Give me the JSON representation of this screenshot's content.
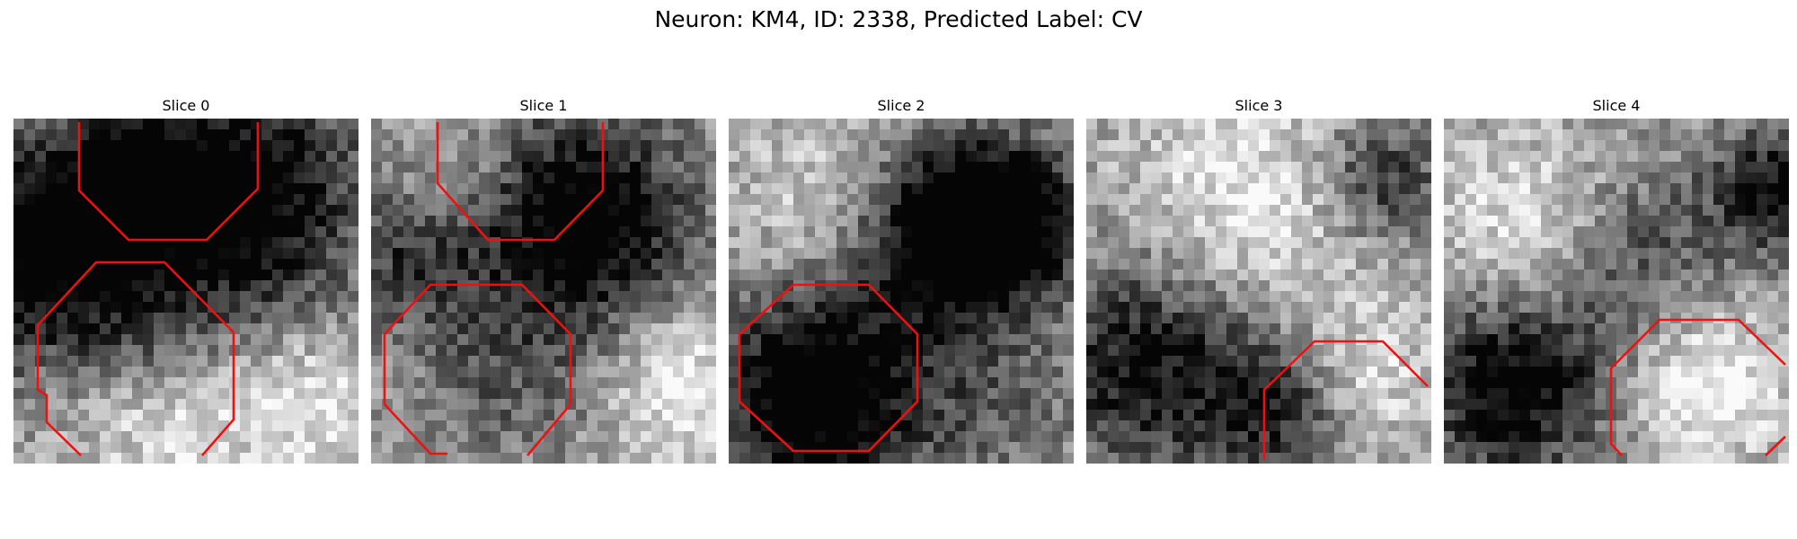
{
  "title": "Neuron: KM4, ID: 2338, Predicted Label: CV",
  "contour_color": "#ee1111",
  "colormap": "gray",
  "panels": [
    {
      "title": "Slice 0"
    },
    {
      "title": "Slice 1"
    },
    {
      "title": "Slice 2"
    },
    {
      "title": "Slice 3"
    },
    {
      "title": "Slice 4"
    }
  ]
}
